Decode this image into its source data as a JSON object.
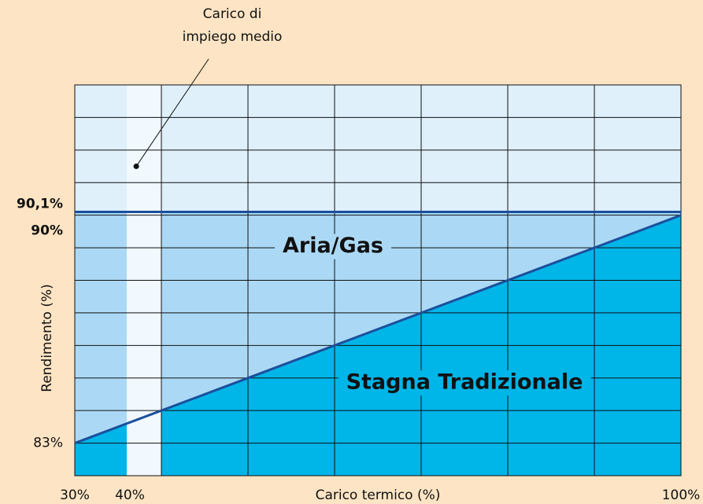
{
  "chart_data": {
    "type": "line",
    "xlabel": "Carico termico (%)",
    "ylabel": "Rendimento (%)",
    "xlim": [
      30,
      100
    ],
    "ylim": [
      82,
      94
    ],
    "xticks": [
      {
        "value": 30,
        "label": "30%"
      },
      {
        "value": 40,
        "label": "40%"
      },
      {
        "value": 100,
        "label": "100%"
      }
    ],
    "yticks": [
      {
        "value": 83,
        "label": "83%"
      },
      {
        "value": 90,
        "label": "90%"
      },
      {
        "value": 90.1,
        "label": "90,1%"
      }
    ],
    "xgrid": [
      40,
      50,
      60,
      70,
      80,
      90
    ],
    "ygrid": [
      83,
      84,
      85,
      86,
      87,
      88,
      89,
      90,
      91,
      92,
      93
    ],
    "grid": true,
    "background": "#dff0fb",
    "series": [
      {
        "name": "Aria/Gas",
        "color": "#1b4f9c",
        "fill": "#abd9f5",
        "x": [
          30,
          100
        ],
        "values": [
          90.1,
          90.1
        ]
      },
      {
        "name": "Stagna Tradizionale",
        "color": "#1b4f9c",
        "fill": "#00b5e8",
        "x": [
          30,
          100
        ],
        "values": [
          83,
          90
        ]
      }
    ],
    "band": {
      "x": [
        36,
        40
      ],
      "color": "#f1f8fe"
    },
    "annotation": {
      "text": [
        "Carico di",
        "impiego medio"
      ],
      "x": 37.1,
      "y": 91.5
    }
  }
}
